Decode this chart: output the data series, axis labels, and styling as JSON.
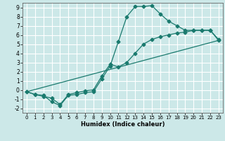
{
  "xlabel": "Humidex (Indice chaleur)",
  "bg_color": "#cce8e8",
  "grid_color": "#ffffff",
  "line_color": "#1a7a6e",
  "xlim": [
    -0.5,
    23.5
  ],
  "ylim": [
    -2.5,
    9.5
  ],
  "xticks": [
    0,
    1,
    2,
    3,
    4,
    5,
    6,
    7,
    8,
    9,
    10,
    11,
    12,
    13,
    14,
    15,
    16,
    17,
    18,
    19,
    20,
    21,
    22,
    23
  ],
  "yticks": [
    -2,
    -1,
    0,
    1,
    2,
    3,
    4,
    5,
    6,
    7,
    8,
    9
  ],
  "line1_x": [
    0,
    1,
    2,
    3,
    4,
    5,
    6,
    7,
    8,
    9,
    10,
    11,
    12,
    13,
    14,
    15,
    16,
    17,
    18,
    19,
    20,
    21,
    22,
    23
  ],
  "line1_y": [
    -0.2,
    -0.5,
    -0.6,
    -1.3,
    -1.7,
    -0.6,
    -0.5,
    -0.3,
    -0.2,
    1.2,
    2.6,
    5.3,
    8.0,
    9.1,
    9.1,
    9.2,
    8.3,
    7.5,
    7.0,
    6.5,
    6.5,
    6.5,
    6.5,
    5.5
  ],
  "line2_x": [
    0,
    1,
    2,
    3,
    4,
    5,
    6,
    7,
    8,
    9,
    10,
    11,
    12,
    13,
    14,
    15,
    16,
    17,
    18,
    19,
    20,
    21,
    22,
    23
  ],
  "line2_y": [
    -0.2,
    -0.5,
    -0.7,
    -0.9,
    -1.6,
    -0.5,
    -0.3,
    -0.1,
    0.0,
    1.5,
    2.8,
    2.5,
    3.0,
    4.0,
    5.0,
    5.5,
    5.8,
    6.0,
    6.2,
    6.3,
    6.5,
    6.5,
    6.5,
    5.4
  ],
  "line3_x": [
    0,
    23
  ],
  "line3_y": [
    -0.2,
    5.4
  ]
}
